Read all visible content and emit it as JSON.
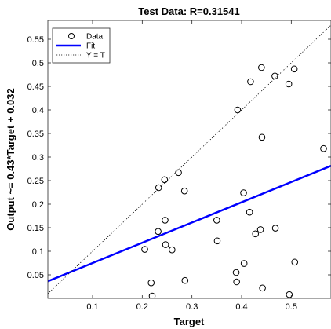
{
  "chart_data": {
    "type": "scatter",
    "title": "Test Data: R=0.31541",
    "xlabel": "Target",
    "ylabel": "Output ~= 0.43*Target + 0.032",
    "xlim": [
      0.01,
      0.58
    ],
    "ylim": [
      0.0,
      0.59
    ],
    "xticks": [
      "0.1",
      "0.2",
      "0.3",
      "0.4",
      "0.5"
    ],
    "xtick_values": [
      0.1,
      0.2,
      0.3,
      0.4,
      0.5
    ],
    "yticks": [
      "0.05",
      "0.1",
      "0.15",
      "0.2",
      "0.25",
      "0.3",
      "0.35",
      "0.4",
      "0.45",
      "0.5",
      "0.55"
    ],
    "ytick_values": [
      0.05,
      0.1,
      0.15,
      0.2,
      0.25,
      0.3,
      0.35,
      0.4,
      0.45,
      0.5,
      0.55
    ],
    "grid": false,
    "legend": {
      "position": "top-left",
      "entries": [
        "Data",
        "Fit",
        "Y = T"
      ]
    },
    "series": [
      {
        "name": "Data",
        "kind": "markers",
        "marker": "circle",
        "color": "#000000",
        "points": [
          [
            0.205,
            0.104
          ],
          [
            0.218,
            0.033
          ],
          [
            0.22,
            0.005
          ],
          [
            0.232,
            0.142
          ],
          [
            0.233,
            0.235
          ],
          [
            0.245,
            0.252
          ],
          [
            0.246,
            0.166
          ],
          [
            0.247,
            0.114
          ],
          [
            0.26,
            0.103
          ],
          [
            0.273,
            0.267
          ],
          [
            0.285,
            0.228
          ],
          [
            0.286,
            0.038
          ],
          [
            0.35,
            0.166
          ],
          [
            0.351,
            0.122
          ],
          [
            0.389,
            0.055
          ],
          [
            0.39,
            0.035
          ],
          [
            0.392,
            0.4
          ],
          [
            0.404,
            0.224
          ],
          [
            0.405,
            0.074
          ],
          [
            0.416,
            0.183
          ],
          [
            0.418,
            0.46
          ],
          [
            0.428,
            0.137
          ],
          [
            0.438,
            0.146
          ],
          [
            0.44,
            0.49
          ],
          [
            0.441,
            0.342
          ],
          [
            0.442,
            0.022
          ],
          [
            0.467,
            0.472
          ],
          [
            0.468,
            0.149
          ],
          [
            0.495,
            0.455
          ],
          [
            0.496,
            0.008
          ],
          [
            0.506,
            0.487
          ],
          [
            0.507,
            0.077
          ],
          [
            0.565,
            0.318
          ]
        ]
      },
      {
        "name": "Fit",
        "kind": "line",
        "color": "#0000ff",
        "slope": 0.43,
        "intercept": 0.032
      },
      {
        "name": "Y = T",
        "kind": "line",
        "dash": "dotted",
        "color": "#000000",
        "slope": 1,
        "intercept": 0
      }
    ]
  }
}
